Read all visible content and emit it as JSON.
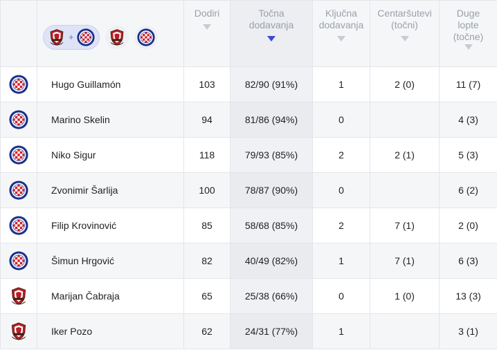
{
  "filters": {
    "combined_label": "+"
  },
  "columns": [
    {
      "key": "touches",
      "label_lines": [
        "Dodiri"
      ]
    },
    {
      "key": "accurate_passes",
      "label_lines": [
        "Točna",
        "dodavanja"
      ],
      "sorted": true
    },
    {
      "key": "key_passes",
      "label_lines": [
        "Ključna",
        "dodavanja"
      ]
    },
    {
      "key": "crosses",
      "label_lines": [
        "Centaršutevi",
        "(točni)"
      ]
    },
    {
      "key": "long_balls",
      "label_lines": [
        "Duge",
        "lopte",
        "(točne)"
      ]
    }
  ],
  "colors": {
    "hajduk_red": "#d3202a",
    "hajduk_blue": "#1c2f8a",
    "gorica_red": "#b51f24",
    "gorica_dark": "#3a1c14",
    "sort_active": "#3b48e0"
  },
  "rows": [
    {
      "team": "hajduk",
      "name": "Hugo Guillamón",
      "touches": "103",
      "accurate_passes": "82/90 (91%)",
      "key_passes": "1",
      "crosses": "2 (0)",
      "long_balls": "11 (7)"
    },
    {
      "team": "hajduk",
      "name": "Marino Skelin",
      "touches": "94",
      "accurate_passes": "81/86 (94%)",
      "key_passes": "0",
      "crosses": "",
      "long_balls": "4 (3)"
    },
    {
      "team": "hajduk",
      "name": "Niko Sigur",
      "touches": "118",
      "accurate_passes": "79/93 (85%)",
      "key_passes": "2",
      "crosses": "2 (1)",
      "long_balls": "5 (3)"
    },
    {
      "team": "hajduk",
      "name": "Zvonimir Šarlija",
      "touches": "100",
      "accurate_passes": "78/87 (90%)",
      "key_passes": "0",
      "crosses": "",
      "long_balls": "6 (2)"
    },
    {
      "team": "hajduk",
      "name": "Filip Krovinović",
      "touches": "85",
      "accurate_passes": "58/68 (85%)",
      "key_passes": "2",
      "crosses": "7 (1)",
      "long_balls": "2 (0)"
    },
    {
      "team": "hajduk",
      "name": "Šimun Hrgović",
      "touches": "82",
      "accurate_passes": "40/49 (82%)",
      "key_passes": "1",
      "crosses": "7 (1)",
      "long_balls": "6 (3)"
    },
    {
      "team": "gorica",
      "name": "Marijan Čabraja",
      "touches": "65",
      "accurate_passes": "25/38 (66%)",
      "key_passes": "0",
      "crosses": "1 (0)",
      "long_balls": "13 (3)"
    },
    {
      "team": "gorica",
      "name": "Iker Pozo",
      "touches": "62",
      "accurate_passes": "24/31 (77%)",
      "key_passes": "1",
      "crosses": "",
      "long_balls": "3 (1)"
    }
  ]
}
